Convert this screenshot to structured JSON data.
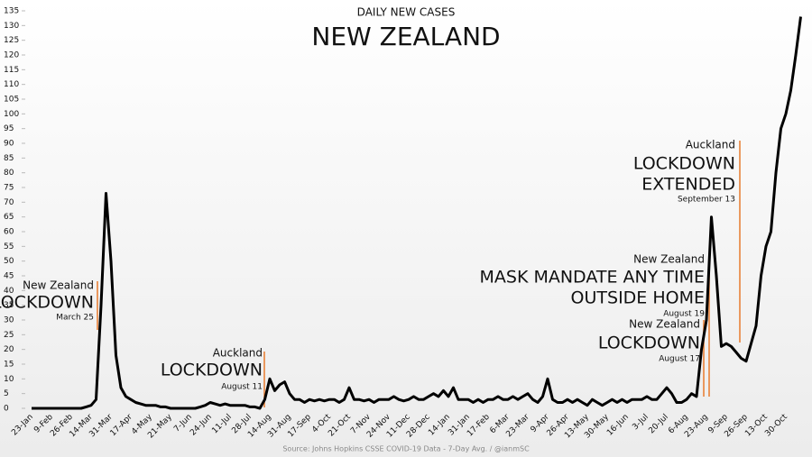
{
  "chart_data": {
    "type": "line",
    "subtitle": "DAILY NEW CASES",
    "title": "NEW ZEALAND",
    "source": "Source: Johns Hopkins CSSE COVID-19 Data - 7-Day Avg. / @ianmSC",
    "color": "#000000",
    "categories": [
      "23-Jan",
      null,
      null,
      null,
      "9-Feb",
      null,
      null,
      null,
      "26-Feb",
      null,
      null,
      null,
      "14-Mar",
      null,
      null,
      null,
      "31-Mar",
      null,
      null,
      null,
      "17-Apr",
      null,
      null,
      null,
      "4-May",
      null,
      null,
      null,
      "21-May",
      null,
      null,
      null,
      "7-Jun",
      null,
      null,
      null,
      "24-Jun",
      null,
      null,
      null,
      "11-Jul",
      null,
      null,
      null,
      "28-Jul",
      null,
      null,
      null,
      "14-Aug",
      null,
      null,
      null,
      "31-Aug",
      null,
      null,
      null,
      "17-Sep",
      null,
      null,
      null,
      "4-Oct",
      null,
      null,
      null,
      "21-Oct",
      null,
      null,
      null,
      "7-Nov",
      null,
      null,
      null,
      "24-Nov",
      null,
      null,
      null,
      "11-Dec",
      null,
      null,
      null,
      "28-Dec",
      null,
      null,
      null,
      "14-Jan",
      null,
      null,
      null,
      "31-Jan",
      null,
      null,
      null,
      "17-Feb",
      null,
      null,
      null,
      "6-Mar",
      null,
      null,
      null,
      "23-Mar",
      null,
      null,
      null,
      "9-Apr",
      null,
      null,
      null,
      "26-Apr",
      null,
      null,
      null,
      "13-May",
      null,
      null,
      null,
      "30-May",
      null,
      null,
      null,
      "16-Jun",
      null,
      null,
      null,
      "3-Jul",
      null,
      null,
      null,
      "20-Jul",
      null,
      null,
      null,
      "6-Aug",
      null,
      null,
      null,
      "23-Aug",
      null,
      null,
      null,
      "9-Sep",
      null,
      null,
      null,
      "26-Sep",
      null,
      null,
      null,
      "13-Oct",
      null,
      null,
      null,
      "30-Oct",
      null,
      null,
      null
    ],
    "values": [
      0,
      0,
      0,
      0,
      0,
      0,
      0,
      0,
      0,
      0,
      0,
      0.5,
      1,
      3,
      35,
      73,
      50,
      18,
      7,
      4,
      3,
      2,
      1.5,
      1,
      1,
      1,
      0.5,
      0.5,
      0,
      0,
      0,
      0,
      0,
      0,
      0.5,
      1,
      2,
      1.5,
      1,
      1.5,
      1,
      1,
      1,
      1,
      0.5,
      0.5,
      0,
      3,
      10,
      6,
      8,
      9,
      5,
      3,
      3,
      2,
      3,
      2.5,
      3,
      2.5,
      3,
      3,
      2,
      3,
      7,
      3,
      3,
      2.5,
      3,
      2,
      3,
      3,
      3,
      4,
      3,
      2.5,
      3,
      4,
      3,
      3,
      4,
      5,
      4,
      6,
      4,
      7,
      3,
      3,
      3,
      2,
      3,
      2,
      3,
      3,
      4,
      3,
      3,
      4,
      3,
      4,
      5,
      3,
      2,
      4,
      10,
      3,
      2,
      2,
      3,
      2,
      3,
      2,
      1,
      3,
      2,
      1,
      2,
      3,
      2,
      3,
      2,
      3,
      3,
      3,
      4,
      3,
      3,
      5,
      7,
      5,
      2,
      2,
      3,
      5,
      4,
      20,
      30,
      65,
      45,
      21,
      22,
      21,
      19,
      17,
      16,
      22,
      28,
      45,
      55,
      60,
      80,
      95,
      100,
      108,
      120,
      133
    ],
    "ylim": [
      0,
      135
    ],
    "yticks": [
      0,
      5,
      10,
      15,
      20,
      25,
      30,
      35,
      40,
      45,
      50,
      55,
      60,
      65,
      70,
      75,
      80,
      85,
      90,
      95,
      100,
      105,
      110,
      115,
      120,
      125,
      130,
      135
    ],
    "annotations": [
      [
        "New Zealand",
        "LOCKDOWN",
        "March 25"
      ],
      [
        "Auckland",
        "LOCKDOWN",
        "August 11"
      ],
      [
        "New Zealand",
        "MASK MANDATE ANY TIME",
        "OUTSIDE HOME",
        "August 19"
      ],
      [
        "New Zealand",
        "LOCKDOWN",
        "August 17"
      ],
      [
        "Auckland",
        "LOCKDOWN",
        "EXTENDED",
        "September 13"
      ]
    ]
  }
}
